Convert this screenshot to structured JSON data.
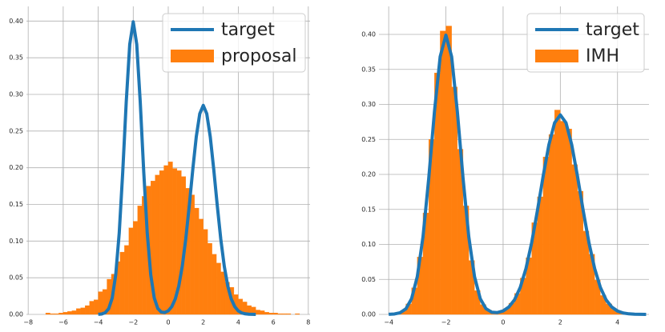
{
  "chart_data": [
    {
      "type": "histogram",
      "xlim": [
        -8.1,
        8.1
      ],
      "ylim": [
        0,
        0.42
      ],
      "xticks": [
        {
          "value": -8,
          "label": "−8"
        },
        {
          "value": -6,
          "label": "−6"
        },
        {
          "value": -4,
          "label": "−4"
        },
        {
          "value": -2,
          "label": "−2"
        },
        0,
        2,
        4,
        6,
        8
      ],
      "yticks": [
        {
          "value": 0,
          "label": "0.00"
        },
        {
          "value": 0.05,
          "label": "0.05"
        },
        {
          "value": 0.1,
          "label": "0.10"
        },
        {
          "value": 0.15,
          "label": "0.15"
        },
        {
          "value": 0.2,
          "label": "0.20"
        },
        {
          "value": 0.25,
          "label": "0.25"
        },
        {
          "value": 0.3,
          "label": "0.30"
        },
        {
          "value": 0.35,
          "label": "0.35"
        },
        {
          "value": 0.4,
          "label": "0.40"
        }
      ],
      "grid": true,
      "legend": "upper-right",
      "series": [
        {
          "name": "target",
          "type": "line",
          "color": "#1f77b4",
          "x": [
            -4,
            -3.8,
            -3.6,
            -3.4,
            -3.2,
            -3,
            -2.8,
            -2.6,
            -2.4,
            -2.2,
            -2,
            -1.8,
            -1.6,
            -1.4,
            -1.2,
            -1,
            -0.8,
            -0.6,
            -0.4,
            -0.2,
            0,
            0.2,
            0.4,
            0.6,
            0.8,
            1,
            1.2,
            1.4,
            1.6,
            1.8,
            2,
            2.2,
            2.4,
            2.6,
            2.8,
            3,
            3.2,
            3.4,
            3.6,
            3.8,
            4,
            4.2,
            4.4,
            4.6,
            4.8,
            5
          ],
          "values": [
            0.0001,
            0.0006,
            0.0024,
            0.0079,
            0.0224,
            0.054,
            0.1109,
            0.1942,
            0.2897,
            0.3683,
            0.399,
            0.3683,
            0.2897,
            0.1942,
            0.1109,
            0.054,
            0.0225,
            0.0082,
            0.0032,
            0.0026,
            0.0049,
            0.0105,
            0.0209,
            0.0386,
            0.0656,
            0.1027,
            0.1483,
            0.1974,
            0.2421,
            0.2736,
            0.285,
            0.2736,
            0.2421,
            0.1974,
            0.1483,
            0.1027,
            0.0656,
            0.0386,
            0.0209,
            0.0105,
            0.0048,
            0.002,
            0.0008,
            0.0003,
            0.0001,
            0
          ]
        },
        {
          "name": "proposal",
          "type": "histogram",
          "color": "#ff7f0e",
          "bins": [
            -7,
            -6.75,
            -6.5,
            -6.25,
            -6,
            -5.75,
            -5.5,
            -5.25,
            -5,
            -4.75,
            -4.5,
            -4.25,
            -4,
            -3.75,
            -3.5,
            -3.25,
            -3,
            -2.75,
            -2.5,
            -2.25,
            -2,
            -1.75,
            -1.5,
            -1.25,
            -1,
            -0.75,
            -0.5,
            -0.25,
            0,
            0.25,
            0.5,
            0.75,
            1,
            1.25,
            1.5,
            1.75,
            2,
            2.25,
            2.5,
            2.75,
            3,
            3.25,
            3.5,
            3.75,
            4,
            4.25,
            4.5,
            4.75,
            5,
            5.25,
            5.5,
            5.75,
            6,
            6.25,
            6.5,
            6.75,
            7,
            7.25,
            7.5
          ],
          "values": [
            0.002,
            0.001,
            0.001,
            0.002,
            0.003,
            0.004,
            0.005,
            0.008,
            0.009,
            0.012,
            0.018,
            0.02,
            0.031,
            0.034,
            0.048,
            0.055,
            0.072,
            0.085,
            0.094,
            0.118,
            0.127,
            0.148,
            0.161,
            0.175,
            0.182,
            0.19,
            0.196,
            0.203,
            0.208,
            0.199,
            0.196,
            0.188,
            0.172,
            0.163,
            0.145,
            0.13,
            0.116,
            0.097,
            0.082,
            0.07,
            0.058,
            0.044,
            0.037,
            0.027,
            0.021,
            0.017,
            0.012,
            0.01,
            0.006,
            0.005,
            0.003,
            0.002,
            0.002,
            0.001,
            0.001,
            0.001,
            0,
            0.001
          ]
        }
      ]
    },
    {
      "type": "histogram",
      "xlim": [
        -4.34,
        5.1
      ],
      "ylim": [
        0,
        0.44
      ],
      "xticks": [
        {
          "value": -4,
          "label": "−4"
        },
        {
          "value": -2,
          "label": "−2"
        },
        0,
        2,
        4
      ],
      "yticks": [
        {
          "value": 0,
          "label": "0.00"
        },
        {
          "value": 0.05,
          "label": "0.05"
        },
        {
          "value": 0.1,
          "label": "0.10"
        },
        {
          "value": 0.15,
          "label": "0.15"
        },
        {
          "value": 0.2,
          "label": "0.20"
        },
        {
          "value": 0.25,
          "label": "0.25"
        },
        {
          "value": 0.3,
          "label": "0.30"
        },
        {
          "value": 0.35,
          "label": "0.35"
        },
        {
          "value": 0.4,
          "label": "0.40"
        }
      ],
      "grid": true,
      "legend": "upper-right",
      "series": [
        {
          "name": "target",
          "type": "line",
          "color": "#1f77b4",
          "x": [
            -4,
            -3.8,
            -3.6,
            -3.4,
            -3.2,
            -3,
            -2.8,
            -2.6,
            -2.4,
            -2.2,
            -2,
            -1.8,
            -1.6,
            -1.4,
            -1.2,
            -1,
            -0.8,
            -0.6,
            -0.4,
            -0.2,
            0,
            0.2,
            0.4,
            0.6,
            0.8,
            1,
            1.2,
            1.4,
            1.6,
            1.8,
            2,
            2.2,
            2.4,
            2.6,
            2.8,
            3,
            3.2,
            3.4,
            3.6,
            3.8,
            4,
            4.2,
            4.4,
            4.6,
            4.8,
            5
          ],
          "values": [
            0.0001,
            0.0006,
            0.0024,
            0.0079,
            0.0224,
            0.054,
            0.1109,
            0.1942,
            0.2897,
            0.3683,
            0.399,
            0.3683,
            0.2897,
            0.1942,
            0.1109,
            0.054,
            0.0225,
            0.0082,
            0.0032,
            0.0026,
            0.0049,
            0.0105,
            0.0209,
            0.0386,
            0.0656,
            0.1027,
            0.1483,
            0.1974,
            0.2421,
            0.2736,
            0.285,
            0.2736,
            0.2421,
            0.1974,
            0.1483,
            0.1027,
            0.0656,
            0.0386,
            0.0209,
            0.0105,
            0.0048,
            0.002,
            0.0008,
            0.0003,
            0.0001,
            0
          ]
        },
        {
          "name": "IMH",
          "type": "histogram",
          "color": "#ff7f0e",
          "bins": [
            -3.8,
            -3.6,
            -3.4,
            -3.2,
            -3,
            -2.8,
            -2.6,
            -2.4,
            -2.2,
            -2,
            -1.8,
            -1.6,
            -1.4,
            -1.2,
            -1,
            -0.8,
            -0.6,
            -0.4,
            -0.2,
            0,
            0.2,
            0.4,
            0.6,
            0.8,
            1,
            1.2,
            1.4,
            1.6,
            1.8,
            2,
            2.2,
            2.4,
            2.6,
            2.8,
            3,
            3.2,
            3.4,
            3.6,
            3.8,
            4,
            4.2,
            4.4,
            4.6
          ],
          "values": [
            0.002,
            0.005,
            0.015,
            0.038,
            0.082,
            0.145,
            0.25,
            0.345,
            0.405,
            0.412,
            0.325,
            0.236,
            0.155,
            0.077,
            0.034,
            0.014,
            0.006,
            0.003,
            0.004,
            0.008,
            0.016,
            0.03,
            0.052,
            0.081,
            0.131,
            0.168,
            0.225,
            0.257,
            0.292,
            0.276,
            0.265,
            0.214,
            0.176,
            0.119,
            0.086,
            0.049,
            0.027,
            0.015,
            0.007,
            0.003,
            0.001,
            0.001
          ]
        }
      ]
    }
  ]
}
